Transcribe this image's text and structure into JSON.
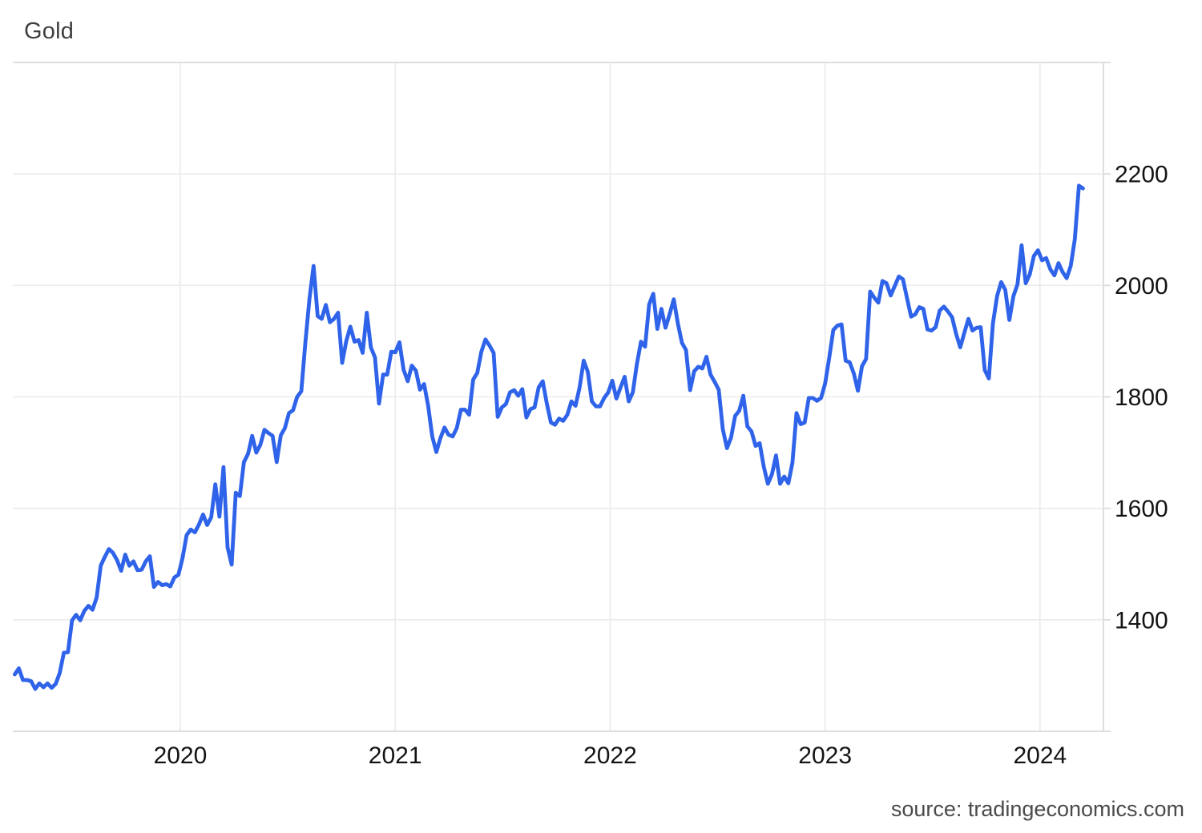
{
  "chart_data": {
    "type": "line",
    "title": "Gold",
    "source_label": "source: tradingeconomics.com",
    "legend": "none",
    "grid": true,
    "y_axis_side": "right",
    "x_tick_labels": [
      "2020",
      "2021",
      "2022",
      "2023",
      "2024"
    ],
    "x_tick_years": [
      2020,
      2021,
      2022,
      2023,
      2024
    ],
    "y_tick_labels": [
      "1400",
      "1600",
      "1800",
      "2000",
      "2200"
    ],
    "y_tick_values": [
      1400,
      1600,
      1800,
      2000,
      2200
    ],
    "x_axis_range": [
      2019.221,
      2024.295
    ],
    "y_axis_range": [
      1200,
      2400
    ],
    "series_x_range": [
      2019.23,
      2024.2
    ],
    "series_frequency": "weekly",
    "line_color": "#2F63E9",
    "values": [
      1302,
      1313,
      1292,
      1292,
      1290,
      1276,
      1286,
      1279,
      1286,
      1278,
      1285,
      1305,
      1341,
      1342,
      1399,
      1409,
      1399,
      1416,
      1425,
      1418,
      1440,
      1497,
      1513,
      1527,
      1520,
      1507,
      1488,
      1517,
      1497,
      1505,
      1489,
      1490,
      1505,
      1514,
      1459,
      1468,
      1462,
      1464,
      1460,
      1476,
      1481,
      1511,
      1552,
      1562,
      1557,
      1571,
      1589,
      1570,
      1584,
      1643,
      1585,
      1674,
      1530,
      1499,
      1628,
      1622,
      1683,
      1698,
      1730,
      1700,
      1714,
      1741,
      1735,
      1730,
      1683,
      1731,
      1744,
      1771,
      1776,
      1800,
      1810,
      1898,
      1976,
      2035,
      1945,
      1940,
      1965,
      1934,
      1940,
      1951,
      1861,
      1900,
      1926,
      1899,
      1902,
      1879,
      1951,
      1889,
      1871,
      1788,
      1840,
      1840,
      1881,
      1880,
      1898,
      1849,
      1828,
      1856,
      1847,
      1813,
      1823,
      1784,
      1729,
      1701,
      1726,
      1745,
      1732,
      1729,
      1744,
      1777,
      1777,
      1768,
      1831,
      1843,
      1881,
      1903,
      1892,
      1879,
      1764,
      1781,
      1787,
      1808,
      1812,
      1802,
      1814,
      1763,
      1778,
      1781,
      1817,
      1828,
      1788,
      1754,
      1750,
      1761,
      1757,
      1768,
      1792,
      1784,
      1817,
      1865,
      1845,
      1792,
      1783,
      1783,
      1798,
      1808,
      1829,
      1797,
      1817,
      1836,
      1792,
      1808,
      1859,
      1899,
      1890,
      1966,
      1985,
      1922,
      1958,
      1924,
      1948,
      1975,
      1932,
      1897,
      1884,
      1812,
      1846,
      1854,
      1851,
      1872,
      1840,
      1827,
      1813,
      1742,
      1708,
      1727,
      1766,
      1775,
      1802,
      1747,
      1738,
      1712,
      1717,
      1675,
      1644,
      1661,
      1695,
      1644,
      1657,
      1645,
      1682,
      1771,
      1751,
      1754,
      1798,
      1798,
      1793,
      1798,
      1824,
      1870,
      1920,
      1928,
      1930,
      1865,
      1862,
      1842,
      1811,
      1855,
      1868,
      1989,
      1978,
      1969,
      2008,
      2004,
      1982,
      1999,
      2016,
      2011,
      1977,
      1944,
      1948,
      1961,
      1958,
      1921,
      1919,
      1925,
      1955,
      1962,
      1953,
      1943,
      1913,
      1889,
      1915,
      1940,
      1919,
      1924,
      1925,
      1848,
      1833,
      1932,
      1981,
      2006,
      1992,
      1938,
      1981,
      2002,
      2072,
      2004,
      2020,
      2053,
      2063,
      2045,
      2049,
      2029,
      2018,
      2040,
      2024,
      2013,
      2035,
      2083,
      2179,
      2174
    ]
  },
  "colors": {
    "background": "#ffffff",
    "grid": "#ebebeb",
    "axis_border": "#dedede",
    "title_text": "#3f3f3f",
    "tick_text": "#141414",
    "source_text": "#4b4b4b",
    "line": "#2F63E9"
  }
}
